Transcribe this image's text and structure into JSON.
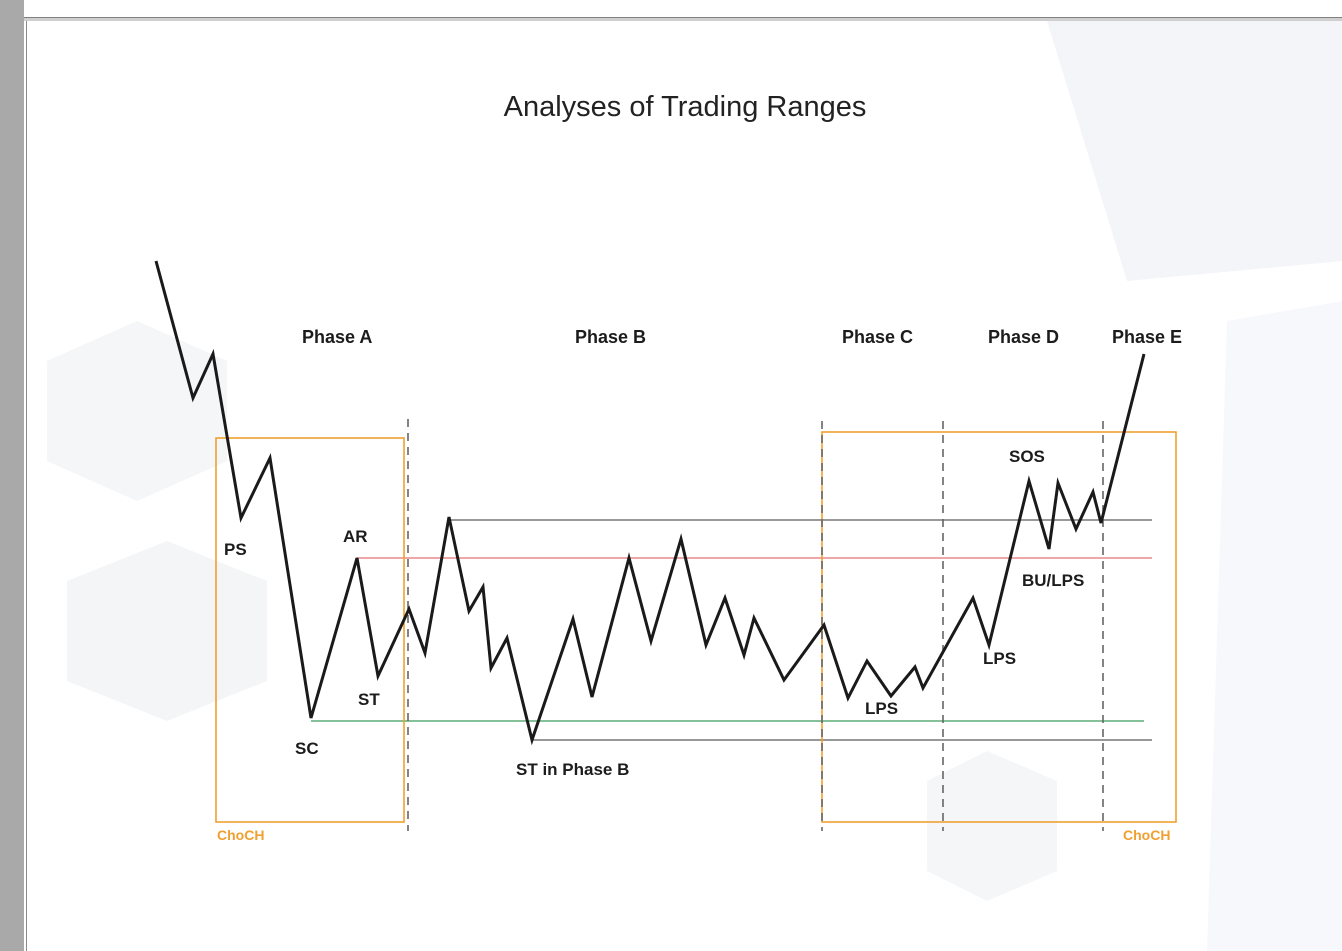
{
  "title": "Analyses of Trading Ranges",
  "phases": [
    "Phase A",
    "Phase B",
    "Phase C",
    "Phase D",
    "Phase E"
  ],
  "events": {
    "ps": "PS",
    "sc": "SC",
    "ar": "AR",
    "st": "ST",
    "st_phase_b": "ST in Phase B",
    "lps_c": "LPS",
    "lps_d": "LPS",
    "sos": "SOS",
    "bu_lps": "BU/LPS"
  },
  "choch_left": "ChoCH",
  "choch_right": "ChoCH",
  "colors": {
    "price_line": "#1a1a1a",
    "box": "#f0a030",
    "resistance": "#e37070",
    "support": "#3a9a5a",
    "level": "#333333",
    "divider": "#666666"
  }
}
